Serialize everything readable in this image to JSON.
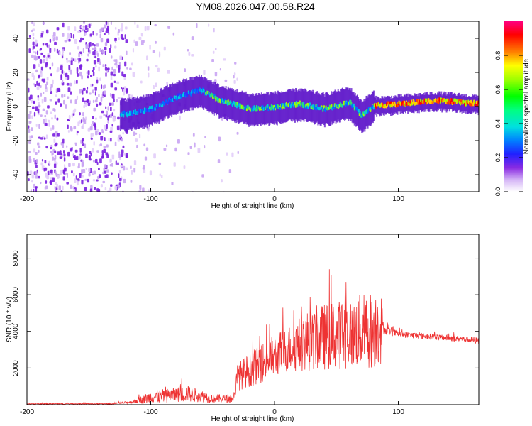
{
  "title": "YM08.2026.047.00.58.R24",
  "chart_data": [
    {
      "type": "heatmap",
      "name": "spectrogram",
      "xlabel": "Height of straight line (km)",
      "ylabel": "Frequency (Hz)",
      "xlim": [
        -200,
        165
      ],
      "ylim": [
        -50,
        50
      ],
      "xticks": [
        -200,
        -100,
        0,
        100
      ],
      "yticks": [
        -40,
        -20,
        0,
        20,
        40
      ],
      "colorbar": {
        "label": "Normalized spectral amplitude",
        "range": [
          0,
          1
        ],
        "ticks": [
          0.0,
          0.2,
          0.4,
          0.6,
          0.8
        ]
      },
      "track": [
        {
          "x": -120,
          "freq": -5
        },
        {
          "x": -100,
          "freq": -2
        },
        {
          "x": -80,
          "freq": 5
        },
        {
          "x": -60,
          "freq": 9
        },
        {
          "x": -45,
          "freq": 3
        },
        {
          "x": -20,
          "freq": -2
        },
        {
          "x": 0,
          "freq": -1
        },
        {
          "x": 20,
          "freq": 1
        },
        {
          "x": 40,
          "freq": -2
        },
        {
          "x": 60,
          "freq": 2
        },
        {
          "x": 70,
          "freq": -6
        },
        {
          "x": 80,
          "freq": 0
        },
        {
          "x": 100,
          "freq": 1
        },
        {
          "x": 130,
          "freq": 3
        },
        {
          "x": 165,
          "freq": 1
        }
      ]
    },
    {
      "type": "line",
      "name": "snr",
      "xlabel": "Height of straight line (km)",
      "ylabel": "SNR (10 * v/v)",
      "xlim": [
        -200,
        165
      ],
      "ylim": [
        0,
        9300
      ],
      "xticks": [
        -200,
        -100,
        0,
        100
      ],
      "yticks": [
        2000,
        4000,
        6000,
        8000
      ],
      "color": "#ee3333",
      "envelope": [
        {
          "x": -200,
          "base": 50,
          "amp": 60
        },
        {
          "x": -130,
          "base": 50,
          "amp": 60
        },
        {
          "x": -115,
          "base": 150,
          "amp": 150
        },
        {
          "x": -100,
          "base": 400,
          "amp": 700
        },
        {
          "x": -70,
          "base": 600,
          "amp": 900
        },
        {
          "x": -50,
          "base": 350,
          "amp": 500
        },
        {
          "x": -33,
          "base": 300,
          "amp": 400
        },
        {
          "x": -30,
          "base": 1500,
          "amp": 1500
        },
        {
          "x": -10,
          "base": 2300,
          "amp": 2200
        },
        {
          "x": 10,
          "base": 3000,
          "amp": 2500
        },
        {
          "x": 30,
          "base": 3600,
          "amp": 3500
        },
        {
          "x": 60,
          "base": 3900,
          "amp": 3900
        },
        {
          "x": 80,
          "base": 4100,
          "amp": 4300
        },
        {
          "x": 86,
          "base": 4300,
          "amp": 4200
        },
        {
          "x": 88,
          "base": 4100,
          "amp": 500
        },
        {
          "x": 100,
          "base": 3850,
          "amp": 350
        },
        {
          "x": 130,
          "base": 3700,
          "amp": 320
        },
        {
          "x": 165,
          "base": 3500,
          "amp": 350
        }
      ]
    }
  ]
}
